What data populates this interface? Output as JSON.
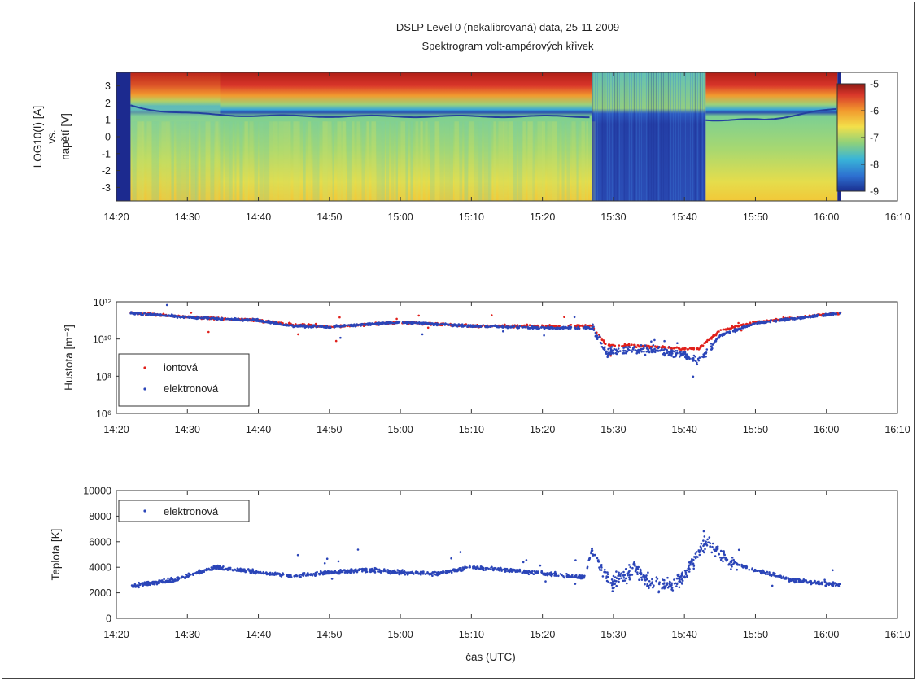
{
  "figure": {
    "title_line1": "DSLP Level 0 (nekalibrovaná) data, 25-11-2009",
    "title_line2": "Spektrogram volt-ampérových křivek",
    "xlabel": "čas (UTC)",
    "time_ticks": [
      "14:20",
      "14:30",
      "14:40",
      "14:50",
      "15:00",
      "15:10",
      "15:20",
      "15:30",
      "15:40",
      "15:50",
      "16:00",
      "16:10"
    ]
  },
  "chart_data": [
    {
      "type": "heatmap",
      "panel": "spectrogram",
      "ylabel_lines": [
        "LOG10(I) [A]",
        "vs.",
        "napětí [V]"
      ],
      "y_ticks": [
        "3",
        "2",
        "1",
        "0",
        "-1",
        "-2",
        "-3"
      ],
      "ylim": [
        -3.8,
        3.8
      ],
      "xlim": [
        "14:20",
        "16:10"
      ],
      "data_range": [
        "14:22",
        "16:02"
      ],
      "colorbar": {
        "ticks": [
          "-5",
          "-6",
          "-7",
          "-8",
          "-9"
        ],
        "range": [
          -9,
          -5
        ],
        "colors": [
          "#1a2e8f",
          "#2d6fd0",
          "#39b5d8",
          "#8fd17a",
          "#f3e04a",
          "#f29a2e",
          "#d8352a",
          "#8f1b14"
        ]
      },
      "features": {
        "boundary_voltage_V": 1.2,
        "disturbed_interval": [
          "15:27",
          "15:43"
        ]
      }
    },
    {
      "type": "scatter",
      "panel": "density",
      "ylabel": "Hustota [m⁻³]",
      "y_scale": "log",
      "y_ticks": [
        "10¹²",
        "10¹⁰",
        "10⁸",
        "10⁶"
      ],
      "ylim": [
        1000000.0,
        1000000000000.0
      ],
      "xlim": [
        "14:20",
        "16:10"
      ],
      "legend": {
        "position": "bottom-left",
        "items": [
          "iontová",
          "elektronová"
        ]
      },
      "series": [
        {
          "name": "iontová",
          "color": "#e0201b",
          "x": [
            "14:22",
            "14:30",
            "14:40",
            "14:45",
            "14:50",
            "15:00",
            "15:10",
            "15:20",
            "15:27",
            "15:29",
            "15:35",
            "15:40",
            "15:42",
            "15:45",
            "15:50",
            "16:02"
          ],
          "y": [
            250000000000.0,
            150000000000.0,
            100000000000.0,
            60000000000.0,
            45000000000.0,
            80000000000.0,
            50000000000.0,
            50000000000.0,
            50000000000.0,
            5000000000.0,
            4000000000.0,
            3000000000.0,
            3000000000.0,
            30000000000.0,
            80000000000.0,
            250000000000.0
          ]
        },
        {
          "name": "elektronová",
          "color": "#2b45b8",
          "x": [
            "14:22",
            "14:30",
            "14:40",
            "14:45",
            "14:50",
            "15:00",
            "15:10",
            "15:20",
            "15:27",
            "15:29",
            "15:35",
            "15:40",
            "15:42",
            "15:45",
            "15:50",
            "16:02"
          ],
          "y": [
            250000000000.0,
            150000000000.0,
            100000000000.0,
            50000000000.0,
            45000000000.0,
            80000000000.0,
            50000000000.0,
            40000000000.0,
            40000000000.0,
            2000000000.0,
            3000000000.0,
            1500000000.0,
            600000000.0,
            15000000000.0,
            70000000000.0,
            250000000000.0
          ]
        }
      ]
    },
    {
      "type": "scatter",
      "panel": "temperature",
      "ylabel": "Teplota [K]",
      "y_ticks": [
        "10000",
        "8000",
        "6000",
        "4000",
        "2000",
        "0"
      ],
      "ylim": [
        0,
        10000
      ],
      "xlim": [
        "14:20",
        "16:10"
      ],
      "legend": {
        "position": "top-left",
        "items": [
          "elektronová"
        ]
      },
      "series": [
        {
          "name": "elektronová",
          "color": "#2b45b8",
          "x": [
            "14:22",
            "14:28",
            "14:34",
            "14:40",
            "14:45",
            "14:50",
            "14:55",
            "15:00",
            "15:05",
            "15:10",
            "15:15",
            "15:20",
            "15:26",
            "15:27",
            "15:28",
            "15:30",
            "15:33",
            "15:35",
            "15:38",
            "15:40",
            "15:43",
            "15:46",
            "15:50",
            "15:55",
            "16:02"
          ],
          "y": [
            2500,
            3000,
            4000,
            3600,
            3300,
            3600,
            3800,
            3600,
            3500,
            4000,
            3800,
            3500,
            3200,
            5500,
            4200,
            2800,
            4000,
            2800,
            2500,
            3500,
            6000,
            4500,
            3800,
            3000,
            2600
          ]
        }
      ]
    }
  ]
}
